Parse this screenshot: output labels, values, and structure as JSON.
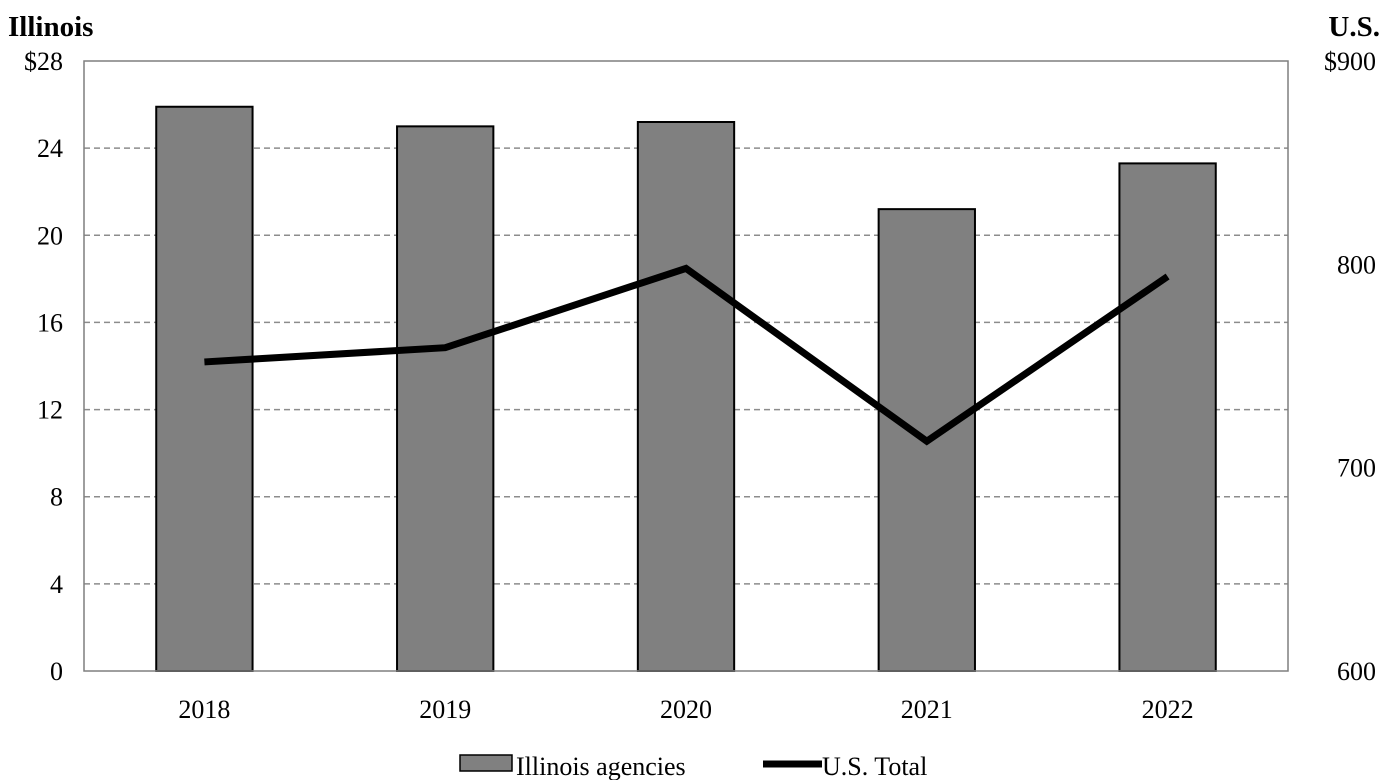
{
  "chart_data": {
    "type": "bar",
    "categories": [
      "2018",
      "2019",
      "2020",
      "2021",
      "2022"
    ],
    "series": [
      {
        "name": "Illinois agencies",
        "type": "bar",
        "axis": "left",
        "values": [
          25.9,
          25.0,
          25.2,
          21.2,
          23.3
        ],
        "color": "#808080"
      },
      {
        "name": "U.S. Total",
        "type": "line",
        "axis": "right",
        "values": [
          752,
          759,
          798,
          713,
          794
        ],
        "color": "#000000"
      }
    ],
    "ylabel_left": "Illinois",
    "ylabel_right": "U.S.",
    "ylim_left": [
      0,
      28
    ],
    "ylim_right": [
      600,
      900
    ],
    "yticks_left": [
      {
        "value": 0,
        "label": "0"
      },
      {
        "value": 4,
        "label": "4"
      },
      {
        "value": 8,
        "label": "8"
      },
      {
        "value": 12,
        "label": "12"
      },
      {
        "value": 16,
        "label": "16"
      },
      {
        "value": 20,
        "label": "20"
      },
      {
        "value": 24,
        "label": "24"
      },
      {
        "value": 28,
        "label": "$28"
      }
    ],
    "yticks_right": [
      {
        "value": 600,
        "label": "600"
      },
      {
        "value": 700,
        "label": "700"
      },
      {
        "value": 800,
        "label": "800"
      },
      {
        "value": 900,
        "label": "$900"
      }
    ],
    "grid": "horizontal dashed",
    "legend": "bottom-center"
  }
}
